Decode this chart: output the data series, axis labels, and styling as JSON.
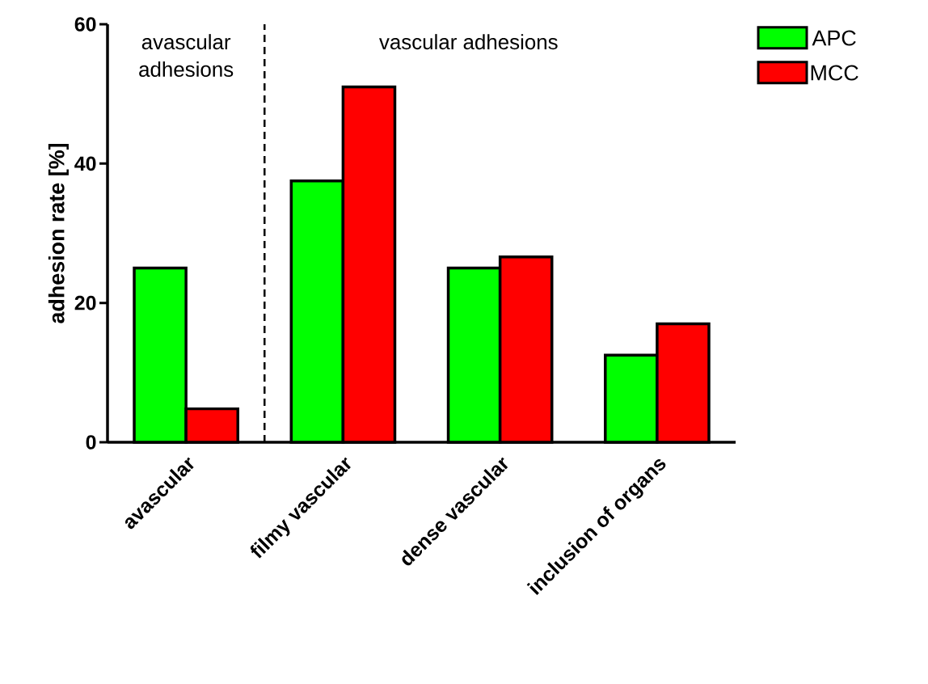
{
  "chart_data": {
    "type": "bar",
    "ylabel": "adhesion rate [%]",
    "categories": [
      "avascular",
      "filmy vascular",
      "dense vascular",
      "inclusion of organs"
    ],
    "series": [
      {
        "name": "APC",
        "color": "#00ff00",
        "values": [
          25,
          37.5,
          25,
          12.5
        ]
      },
      {
        "name": "MCC",
        "color": "#ff0000",
        "values": [
          4.8,
          51,
          26.6,
          17
        ]
      }
    ],
    "ylim": [
      0,
      60
    ],
    "yticks": [
      0,
      20,
      40,
      60
    ],
    "annotations": [
      "avascular adhesions",
      "vascular adhesions"
    ],
    "legend": "top right",
    "grid": false
  }
}
